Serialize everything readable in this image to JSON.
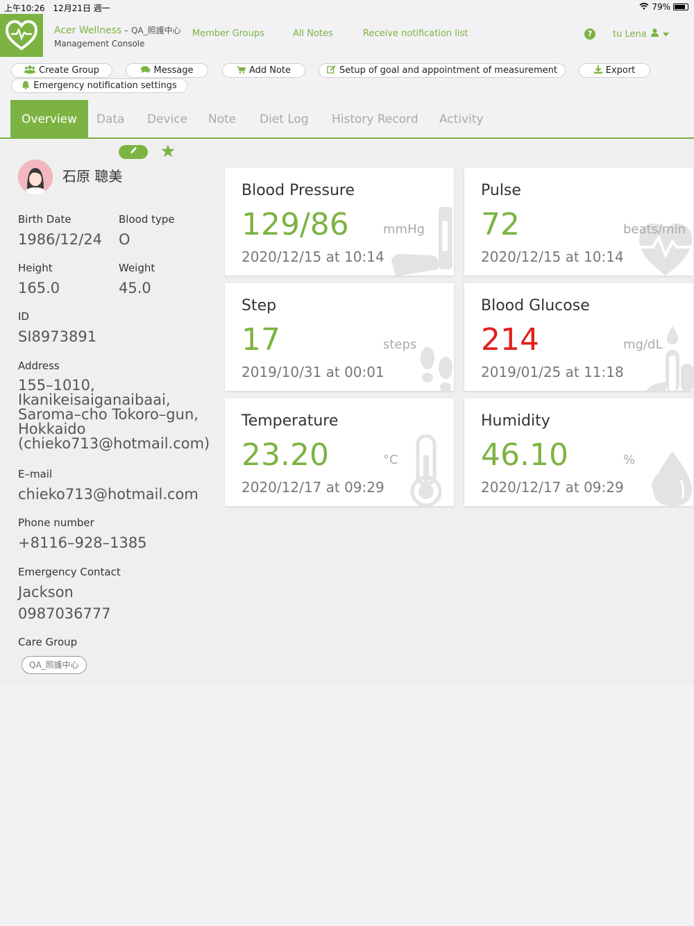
{
  "status": {
    "time": "上午10:26",
    "date": "12月21日 週一",
    "battery": "79%"
  },
  "header": {
    "app_name": "Acer Wellness",
    "separator": " – ",
    "org": "QA_照護中心",
    "console": "Management Console",
    "nav": [
      "Member Groups",
      "All Notes",
      "Receive notification list"
    ],
    "help": "?",
    "user": "tu Lena"
  },
  "toolbar": {
    "create_group": "Create Group",
    "message": "Message",
    "add_note": "Add Note",
    "setup_goal": "Setup of goal and appointment of measurement",
    "export": "Export",
    "emergency": "Emergency notification settings"
  },
  "tabs": [
    "Overview",
    "Data",
    "Device",
    "Note",
    "Diet Log",
    "History Record",
    "Activity"
  ],
  "profile": {
    "name": "石原 聰美",
    "birth_label": "Birth Date",
    "birth": "1986/12/24",
    "blood_label": "Blood type",
    "blood": "O",
    "height_label": "Height",
    "height": "165.0",
    "weight_label": "Weight",
    "weight": "45.0",
    "id_label": "ID",
    "id": "SI8973891",
    "address_label": "Address",
    "address": "155–1010, Ikanikeisaiganaibaai, Saroma–cho Tokoro–gun, Hokkaido (chieko713@hotmail.com)",
    "email_label": "E–mail",
    "email": "chieko713@hotmail.com",
    "phone_label": "Phone number",
    "phone": "+8116–928–1385",
    "emergency_label": "Emergency Contact",
    "emergency_name": "Jackson",
    "emergency_phone": "0987036777",
    "care_label": "Care Group",
    "care_group": "QA_照護中心"
  },
  "cards": {
    "bp": {
      "title": "Blood Pressure",
      "value": "129/86",
      "unit": "mmHg",
      "date": "2020/12/15 at 10:14"
    },
    "pulse": {
      "title": "Pulse",
      "value": "72",
      "unit": "beats/min",
      "date": "2020/12/15 at 10:14"
    },
    "step": {
      "title": "Step",
      "value": "17",
      "unit": "steps",
      "date": "2019/10/31 at 00:01"
    },
    "glucose": {
      "title": "Blood Glucose",
      "value": "214",
      "unit": "mg/dL",
      "date": "2019/01/25 at 11:18"
    },
    "temp": {
      "title": "Temperature",
      "value": "23.20",
      "unit": "°C",
      "date": "2020/12/17 at 09:29"
    },
    "humidity": {
      "title": "Humidity",
      "value": "46.10",
      "unit": "%",
      "date": "2020/12/17 at 09:29"
    }
  },
  "colors": {
    "accent": "#7cb342",
    "alert": "#e31e1e"
  }
}
